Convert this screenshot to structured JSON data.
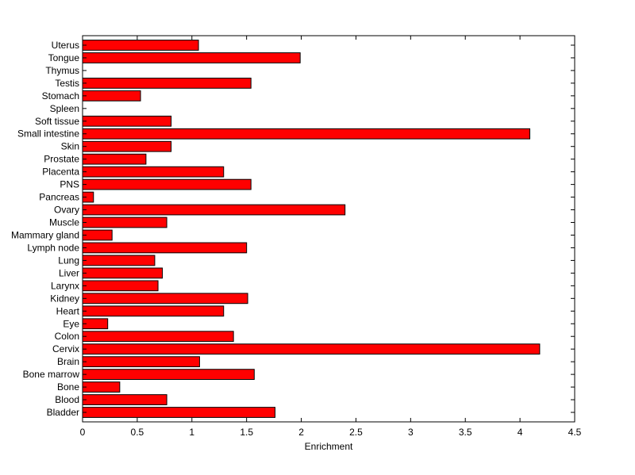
{
  "chart_data": {
    "type": "bar",
    "orientation": "horizontal",
    "title": "",
    "xlabel": "Enrichment",
    "ylabel": "",
    "xlim": [
      0,
      4.5
    ],
    "xticks": [
      "0",
      "0.5",
      "1",
      "1.5",
      "2",
      "2.5",
      "3",
      "3.5",
      "4",
      "4.5"
    ],
    "grid": false,
    "bar_color": "#ff0000",
    "bar_edge_color": "#000000",
    "categories": [
      "Bladder",
      "Blood",
      "Bone",
      "Bone marrow",
      "Brain",
      "Cervix",
      "Colon",
      "Eye",
      "Heart",
      "Kidney",
      "Larynx",
      "Liver",
      "Lung",
      "Lymph node",
      "Mammary gland",
      "Muscle",
      "Ovary",
      "Pancreas",
      "PNS",
      "Placenta",
      "Prostate",
      "Skin",
      "Small intestine",
      "Soft tissue",
      "Spleen",
      "Stomach",
      "Testis",
      "Thymus",
      "Tongue",
      "Uterus"
    ],
    "values": [
      1.76,
      0.77,
      0.34,
      1.57,
      1.07,
      4.18,
      1.38,
      0.23,
      1.29,
      1.51,
      0.69,
      0.73,
      0.66,
      1.5,
      0.27,
      0.77,
      2.4,
      0.1,
      1.54,
      1.29,
      0.58,
      0.81,
      4.09,
      0.81,
      0,
      0.53,
      1.54,
      0,
      1.99,
      1.06
    ]
  }
}
